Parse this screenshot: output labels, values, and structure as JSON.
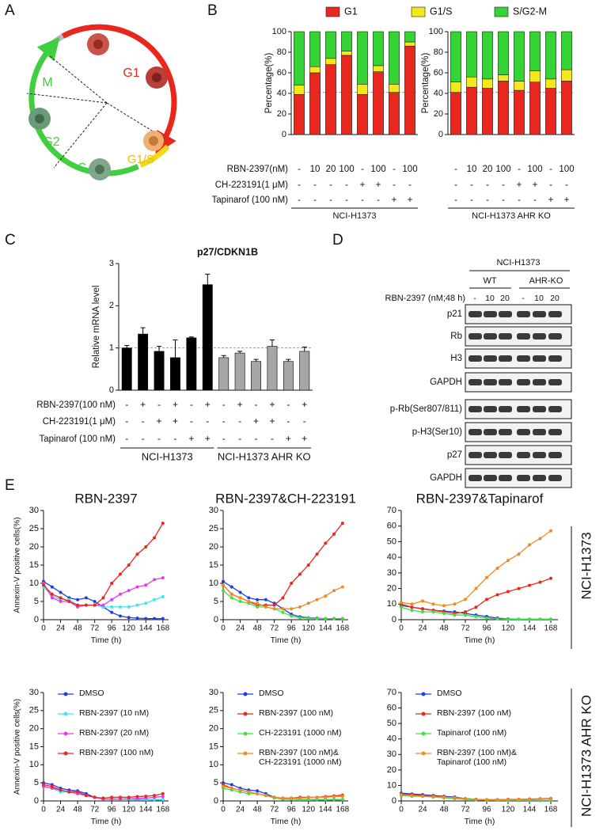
{
  "panels": [
    "A",
    "B",
    "C",
    "D",
    "E"
  ],
  "diagram": {
    "phases": [
      "G1",
      "M",
      "G2",
      "S",
      "G1/S"
    ]
  },
  "blot": {
    "cell_line": "NCI-H1373",
    "groups": [
      "WT",
      "AHR-KO"
    ],
    "treatment_label": "RBN-2397 (nM;48 h)",
    "lanes": [
      "-",
      "10",
      "20",
      "-",
      "10",
      "20"
    ],
    "rows": [
      "p21",
      "Rb",
      "H3",
      "GAPDH",
      "p-Rb(Ser807/811)",
      "p-H3(Ser10)",
      "p27",
      "GAPDH"
    ]
  },
  "panel_e": {
    "row_labels": [
      "NCI-H1373",
      "NCI-H1373 AHR KO"
    ]
  },
  "chart_data": [
    {
      "type": "stacked_bar",
      "ylabel": "Percentage(%)",
      "ylim": [
        0,
        100
      ],
      "yticks": [
        0,
        20,
        40,
        60,
        80,
        100
      ],
      "ref_line": 41,
      "legend": "top",
      "series": [
        {
          "name": "G1",
          "color": "#e8281e",
          "values": [
            39,
            60,
            68,
            77,
            39,
            61,
            41,
            86
          ]
        },
        {
          "name": "G1/S",
          "color": "#f3e81a",
          "values": [
            9,
            6,
            6,
            4,
            10,
            6,
            8,
            4
          ]
        },
        {
          "name": "S/G2-M",
          "color": "#35d435",
          "values": [
            52,
            34,
            26,
            19,
            51,
            33,
            51,
            10
          ]
        }
      ],
      "treatment_labels": [
        "RBN-2397(nM)",
        "CH-223191(1 μM)",
        "Tapinarof (100 nM)"
      ],
      "treatments": [
        [
          "-",
          "10",
          "20",
          "100",
          "-",
          "100",
          "-",
          "100"
        ],
        [
          "-",
          "-",
          "-",
          "-",
          "+",
          "+",
          "-",
          "-"
        ],
        [
          "-",
          "-",
          "-",
          "-",
          "-",
          "-",
          "+",
          "+"
        ]
      ],
      "group": "NCI-H1373"
    },
    {
      "type": "stacked_bar",
      "ylabel": "Percentage(%)",
      "ylim": [
        0,
        100
      ],
      "yticks": [
        0,
        20,
        40,
        60,
        80,
        100
      ],
      "ref_line": 41,
      "series": [
        {
          "color": "#e8281e",
          "values": [
            41,
            46,
            45,
            52,
            43,
            51,
            45,
            52
          ]
        },
        {
          "color": "#f3e81a",
          "values": [
            10,
            10,
            9,
            6,
            9,
            11,
            9,
            11
          ]
        },
        {
          "color": "#35d435",
          "values": [
            49,
            44,
            46,
            42,
            48,
            38,
            46,
            37
          ]
        }
      ],
      "treatments": [
        [
          "-",
          "10",
          "20",
          "100",
          "-",
          "100",
          "-",
          "100"
        ],
        [
          "-",
          "-",
          "-",
          "-",
          "+",
          "+",
          "-",
          "-"
        ],
        [
          "-",
          "-",
          "-",
          "-",
          "-",
          "-",
          "+",
          "+"
        ]
      ],
      "group": "NCI-H1373 AHR KO"
    },
    {
      "type": "bar",
      "title": "p27/CDKN1B",
      "ylabel": "Relative mRNA level",
      "ylim": [
        0,
        3
      ],
      "yticks": [
        0,
        1,
        2,
        3
      ],
      "ref_line": 1,
      "treatment_labels": [
        "RBN-2397(100 nM)",
        "CH-223191(1 μM)",
        "Tapinarof (100 nM)"
      ],
      "groups": [
        {
          "label": "NCI-H1373",
          "color": "#000000",
          "values": [
            1.0,
            1.33,
            0.92,
            0.77,
            1.24,
            2.5
          ],
          "errors": [
            0.06,
            0.15,
            0.12,
            0.42,
            0.02,
            0.25
          ],
          "treatments": [
            [
              "-",
              "+",
              "-",
              "+",
              "-",
              "+"
            ],
            [
              "-",
              "-",
              "+",
              "+",
              "-",
              "-"
            ],
            [
              "-",
              "-",
              "-",
              "-",
              "+",
              "+"
            ]
          ]
        },
        {
          "label": "NCI-H1373 AHR KO",
          "color": "#a6a6a6",
          "values": [
            0.77,
            0.88,
            0.68,
            1.04,
            0.68,
            0.92
          ],
          "errors": [
            0.05,
            0.04,
            0.05,
            0.15,
            0.05,
            0.1
          ],
          "treatments": [
            [
              "-",
              "+",
              "-",
              "+",
              "-",
              "+"
            ],
            [
              "-",
              "-",
              "+",
              "+",
              "-",
              "-"
            ],
            [
              "-",
              "-",
              "-",
              "-",
              "+",
              "+"
            ]
          ]
        }
      ]
    },
    {
      "type": "line",
      "title": "RBN-2397",
      "xlabel": "Time (h)",
      "ylabel": "Annexin-V positive cells(%)",
      "x": [
        0,
        12,
        24,
        36,
        48,
        60,
        72,
        84,
        96,
        108,
        120,
        132,
        144,
        156,
        168
      ],
      "xlim": [
        0,
        176
      ],
      "xticks": [
        0,
        24,
        48,
        72,
        96,
        120,
        144,
        168
      ],
      "ylim": [
        0,
        30
      ],
      "yticks": [
        0,
        5,
        10,
        15,
        20,
        25,
        30
      ],
      "series": [
        {
          "color": "#1f3fe0",
          "values": [
            10.5,
            9,
            7.5,
            6,
            5.5,
            6,
            5,
            3.5,
            2,
            1,
            0.6,
            0.4,
            0.3,
            0.3,
            0.3
          ]
        },
        {
          "color": "#3ae8f0",
          "values": [
            9,
            6.5,
            5.5,
            5.5,
            4,
            4,
            4,
            3.5,
            3.5,
            3.5,
            3.5,
            4,
            4.5,
            5.5,
            6.3
          ]
        },
        {
          "color": "#e040e0",
          "values": [
            10,
            6,
            5,
            5,
            3.5,
            4,
            4,
            4,
            5.5,
            7,
            8,
            9,
            9.5,
            11,
            11.5
          ]
        },
        {
          "color": "#e8281e",
          "values": [
            9.5,
            7,
            6,
            5,
            4,
            4,
            4,
            6,
            10,
            12.5,
            15,
            18,
            20,
            22.5,
            26.5
          ]
        }
      ]
    },
    {
      "type": "line",
      "title": "RBN-2397&CH-223191",
      "xlabel": "Time (h)",
      "x": [
        0,
        12,
        24,
        36,
        48,
        60,
        72,
        84,
        96,
        108,
        120,
        132,
        144,
        156,
        168
      ],
      "xlim": [
        0,
        176
      ],
      "xticks": [
        0,
        24,
        48,
        72,
        96,
        120,
        144,
        168
      ],
      "ylim": [
        0,
        30
      ],
      "yticks": [
        0,
        5,
        10,
        15,
        20,
        25,
        30
      ],
      "series": [
        {
          "color": "#1f3fe0",
          "values": [
            10.5,
            9,
            7.5,
            6,
            5.5,
            5.5,
            4.5,
            3,
            1.5,
            0.8,
            0.5,
            0.4,
            0.3,
            0.3,
            0.3
          ]
        },
        {
          "color": "#e8281e",
          "values": [
            9.5,
            7,
            6,
            5,
            4,
            4,
            4,
            6,
            10,
            12.5,
            15,
            18,
            21,
            23.5,
            26.5
          ]
        },
        {
          "color": "#40e040",
          "values": [
            8,
            6,
            5,
            4.5,
            3.5,
            3.5,
            3,
            2,
            1,
            0.5,
            0.4,
            0.3,
            0.3,
            0.3,
            0.3
          ]
        },
        {
          "color": "#f08a24",
          "values": [
            9.5,
            7,
            6,
            5,
            4.5,
            3.5,
            3,
            3,
            3,
            3.5,
            4.5,
            5.5,
            6.5,
            8,
            9
          ]
        }
      ]
    },
    {
      "type": "line",
      "title": "RBN-2397&Tapinarof",
      "xlabel": "Time (h)",
      "x": [
        0,
        12,
        24,
        36,
        48,
        60,
        72,
        84,
        96,
        108,
        120,
        132,
        144,
        156,
        168
      ],
      "xlim": [
        0,
        176
      ],
      "xticks": [
        0,
        24,
        48,
        72,
        96,
        120,
        144,
        168
      ],
      "ylim": [
        0,
        70
      ],
      "yticks": [
        0,
        10,
        20,
        30,
        40,
        50,
        60,
        70
      ],
      "series": [
        {
          "color": "#1f3fe0",
          "values": [
            9,
            8,
            7,
            6,
            5.5,
            5,
            4,
            3,
            2,
            1,
            0.5,
            0.3,
            0.3,
            0.3,
            0.3
          ]
        },
        {
          "color": "#e8281e",
          "values": [
            10,
            8,
            7,
            6,
            5,
            4,
            5,
            8,
            13,
            16,
            18,
            20,
            22,
            24,
            26.5
          ]
        },
        {
          "color": "#40e040",
          "values": [
            8,
            6,
            5,
            5,
            4,
            3,
            3,
            2,
            1,
            0.5,
            0.3,
            0.3,
            0.3,
            0.3,
            0.3
          ]
        },
        {
          "color": "#f08a24",
          "values": [
            11,
            10,
            12,
            10,
            9,
            10,
            13,
            20,
            27,
            33,
            38,
            42,
            48,
            52,
            57
          ]
        }
      ]
    },
    {
      "type": "line",
      "xlabel": "Time (h)",
      "ylabel": "Annexin-V positive cells(%)",
      "x": [
        0,
        12,
        24,
        36,
        48,
        60,
        72,
        84,
        96,
        108,
        120,
        132,
        144,
        156,
        168
      ],
      "xlim": [
        0,
        176
      ],
      "xticks": [
        0,
        24,
        48,
        72,
        96,
        120,
        144,
        168
      ],
      "ylim": [
        0,
        30
      ],
      "yticks": [
        0,
        5,
        10,
        15,
        20,
        25,
        30
      ],
      "series": [
        {
          "name": "DMSO",
          "color": "#1f3fe0",
          "values": [
            5,
            4.5,
            3.5,
            3,
            2.8,
            2,
            1,
            0.5,
            0.5,
            0.5,
            0.5,
            0.4,
            0.4,
            0.3,
            0.3
          ]
        },
        {
          "name": "RBN-2397 (10 nM)",
          "color": "#3ae8f0",
          "values": [
            4,
            3.5,
            2.5,
            2.5,
            2,
            1.5,
            1,
            0.5,
            0.5,
            0.5,
            0.5,
            0.5,
            0.4,
            0.4,
            0.4
          ]
        },
        {
          "name": "RBN-2397 (20 nM)",
          "color": "#e040e0",
          "values": [
            4,
            3.5,
            3,
            2.5,
            2,
            1.5,
            1,
            0.5,
            0.5,
            0.5,
            0.6,
            0.7,
            0.8,
            1,
            1.2
          ]
        },
        {
          "name": "RBN-2397 (100 nM)",
          "color": "#e8281e",
          "values": [
            4.5,
            4,
            3,
            2.5,
            2.5,
            1.5,
            1,
            0.8,
            1,
            1,
            1,
            1.2,
            1.3,
            1.5,
            2
          ]
        }
      ]
    },
    {
      "type": "line",
      "xlabel": "Time (h)",
      "x": [
        0,
        12,
        24,
        36,
        48,
        60,
        72,
        84,
        96,
        108,
        120,
        132,
        144,
        156,
        168
      ],
      "xlim": [
        0,
        176
      ],
      "xticks": [
        0,
        24,
        48,
        72,
        96,
        120,
        144,
        168
      ],
      "ylim": [
        0,
        30
      ],
      "yticks": [
        0,
        5,
        10,
        15,
        20,
        25,
        30
      ],
      "series": [
        {
          "name": "DMSO",
          "color": "#1f3fe0",
          "values": [
            5,
            4.5,
            3.5,
            3,
            2.8,
            2,
            1,
            0.5,
            0.5,
            0.4,
            0.4,
            0.3,
            0.3,
            0.3,
            0.3
          ]
        },
        {
          "name": "RBN-2397 (100 nM)",
          "color": "#e8281e",
          "values": [
            4.5,
            3.5,
            3,
            2.5,
            2,
            1.5,
            1,
            0.8,
            0.8,
            1,
            1,
            1,
            1.2,
            1.4,
            1.6
          ]
        },
        {
          "name": "CH-223191 (1000 nM)",
          "color": "#40e040",
          "values": [
            3.5,
            3,
            2.5,
            2,
            2,
            1.5,
            0.8,
            0.5,
            0.5,
            0.4,
            0.4,
            0.4,
            0.4,
            0.4,
            0.4
          ]
        },
        {
          "name": "RBN-2397 (100 nM)& CH-223191 (1000 nM)",
          "color": "#f08a24",
          "values": [
            4,
            3.5,
            3,
            2.5,
            2,
            1.5,
            1,
            0.8,
            0.8,
            0.8,
            0.9,
            1,
            1,
            1.2,
            1.3
          ]
        }
      ]
    },
    {
      "type": "line",
      "xlabel": "Time (h)",
      "x": [
        0,
        12,
        24,
        36,
        48,
        60,
        72,
        84,
        96,
        108,
        120,
        132,
        144,
        156,
        168
      ],
      "xlim": [
        0,
        176
      ],
      "xticks": [
        0,
        24,
        48,
        72,
        96,
        120,
        144,
        168
      ],
      "ylim": [
        0,
        70
      ],
      "yticks": [
        0,
        10,
        20,
        30,
        40,
        50,
        60,
        70
      ],
      "series": [
        {
          "name": "DMSO",
          "color": "#1f3fe0",
          "values": [
            5,
            4.5,
            4,
            3.5,
            3,
            2.5,
            1.5,
            1,
            0.7,
            0.5,
            0.5,
            0.4,
            0.3,
            0.3,
            0.3
          ]
        },
        {
          "name": "RBN-2397 (100 nM)",
          "color": "#e8281e",
          "values": [
            4.5,
            4,
            3.5,
            3,
            2.5,
            2,
            1.5,
            1,
            0.8,
            0.8,
            1,
            1,
            1.2,
            1.4,
            1.6
          ]
        },
        {
          "name": "Tapinarof (100 nM)",
          "color": "#40e040",
          "values": [
            3.5,
            3,
            3,
            2.5,
            2,
            1.5,
            1,
            0.7,
            0.5,
            0.4,
            0.4,
            0.4,
            0.4,
            0.4,
            0.4
          ]
        },
        {
          "name": "RBN-2397 (100 nM)& Tapinarof (100 nM)",
          "color": "#f08a24",
          "values": [
            4,
            3.5,
            3,
            2.8,
            2.5,
            2,
            1.5,
            1,
            0.8,
            0.8,
            0.9,
            1,
            1,
            1.2,
            1.4
          ]
        }
      ]
    }
  ]
}
